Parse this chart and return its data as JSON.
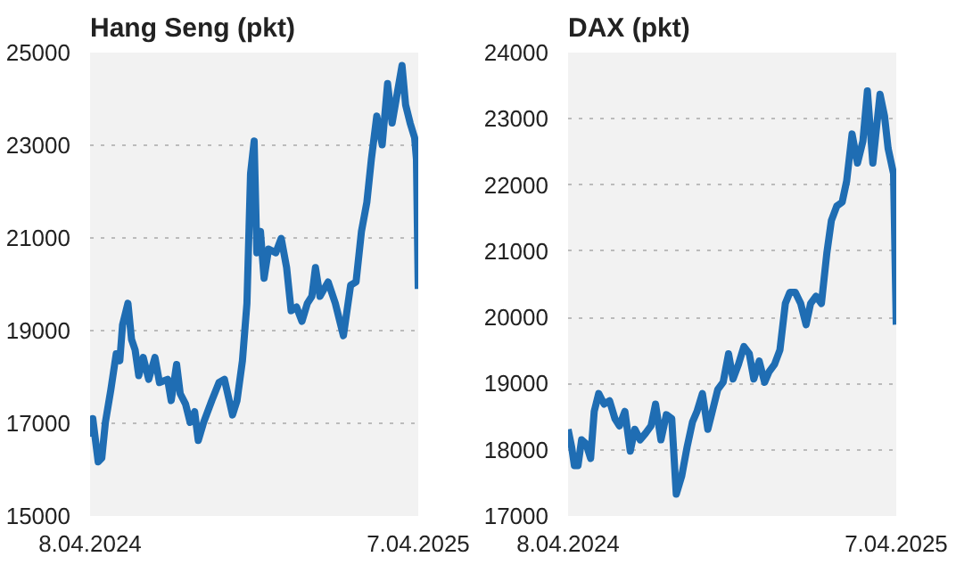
{
  "chart_data": [
    {
      "type": "line",
      "title": "Hang Seng (pkt)",
      "xlim": [
        "2024-04-08",
        "2025-04-07"
      ],
      "xticks": [
        {
          "value": "2024-04-08",
          "label": "8.04.2024"
        },
        {
          "value": "2025-04-07",
          "label": "7.04.2025"
        }
      ],
      "ylim": [
        15000,
        25000
      ],
      "yticks": [
        15000,
        17000,
        19000,
        21000,
        23000,
        25000
      ],
      "grid": "y",
      "line_style": "solid",
      "marker": "none",
      "series": [
        {
          "color": "#1f6db3",
          "x": [
            "2024-04-08",
            "2024-04-11",
            "2024-04-15",
            "2024-04-17",
            "2024-04-21",
            "2024-04-25",
            "2024-05-01",
            "2024-05-07",
            "2024-05-11",
            "2024-05-14",
            "2024-05-20",
            "2024-05-24",
            "2024-05-28",
            "2024-06-01",
            "2024-06-06",
            "2024-06-12",
            "2024-06-19",
            "2024-06-24",
            "2024-07-03",
            "2024-07-07",
            "2024-07-13",
            "2024-07-17",
            "2024-07-23",
            "2024-07-28",
            "2024-08-02",
            "2024-08-06",
            "2024-08-12",
            "2024-08-21",
            "2024-08-29",
            "2024-09-04",
            "2024-09-13",
            "2024-09-18",
            "2024-09-24",
            "2024-09-29",
            "2024-10-03",
            "2024-10-07",
            "2024-10-10",
            "2024-10-14",
            "2024-10-18",
            "2024-10-23",
            "2024-10-31",
            "2024-11-06",
            "2024-11-12",
            "2024-11-17",
            "2024-11-23",
            "2024-11-29",
            "2024-12-05",
            "2024-12-10",
            "2024-12-14",
            "2024-12-19",
            "2024-12-28",
            "2025-01-05",
            "2025-01-14",
            "2025-01-22",
            "2025-01-28",
            "2025-02-03",
            "2025-02-09",
            "2025-02-14",
            "2025-02-20",
            "2025-02-26",
            "2025-03-04",
            "2025-03-09",
            "2025-03-20",
            "2025-03-24",
            "2025-03-29",
            "2025-04-03",
            "2025-04-05",
            "2025-04-07"
          ],
          "values": [
            16710,
            17100,
            16480,
            16170,
            16250,
            17020,
            17720,
            18500,
            18350,
            19120,
            19590,
            18810,
            18580,
            18030,
            18420,
            17950,
            18420,
            17880,
            17950,
            17490,
            18270,
            17640,
            17410,
            17020,
            17250,
            16630,
            17020,
            17490,
            17880,
            17950,
            17180,
            17490,
            18350,
            19590,
            22390,
            23090,
            20680,
            21140,
            20130,
            20760,
            20680,
            20990,
            20360,
            19430,
            19510,
            19200,
            19590,
            19740,
            20360,
            19740,
            20050,
            19590,
            18890,
            19980,
            20050,
            21140,
            21770,
            22700,
            23630,
            23010,
            24330,
            23480,
            24720,
            23870,
            23480,
            23160,
            22700,
            19900
          ]
        }
      ]
    },
    {
      "type": "line",
      "title": "DAX (pkt)",
      "xlim": [
        "2024-04-08",
        "2025-04-07"
      ],
      "xticks": [
        {
          "value": "2024-04-08",
          "label": "8.04.2024"
        },
        {
          "value": "2025-04-07",
          "label": "7.04.2025"
        }
      ],
      "ylim": [
        17000,
        24000
      ],
      "yticks": [
        17000,
        18000,
        19000,
        20000,
        21000,
        22000,
        23000,
        24000
      ],
      "grid": "y",
      "line_style": "solid",
      "marker": "none",
      "series": [
        {
          "color": "#1f6db3",
          "x": [
            "2024-04-08",
            "2024-04-12",
            "2024-04-15",
            "2024-04-19",
            "2024-04-23",
            "2024-04-28",
            "2024-05-03",
            "2024-05-07",
            "2024-05-12",
            "2024-05-18",
            "2024-05-24",
            "2024-05-30",
            "2024-06-04",
            "2024-06-10",
            "2024-06-16",
            "2024-06-21",
            "2024-06-27",
            "2024-07-03",
            "2024-07-09",
            "2024-07-14",
            "2024-07-20",
            "2024-07-26",
            "2024-08-01",
            "2024-08-06",
            "2024-08-12",
            "2024-08-18",
            "2024-08-24",
            "2024-08-29",
            "2024-09-04",
            "2024-09-10",
            "2024-09-15",
            "2024-09-21",
            "2024-09-27",
            "2024-10-03",
            "2024-10-08",
            "2024-10-14",
            "2024-10-20",
            "2024-10-26",
            "2024-10-31",
            "2024-11-06",
            "2024-11-12",
            "2024-11-17",
            "2024-11-23",
            "2024-11-29",
            "2024-12-05",
            "2024-12-10",
            "2024-12-16",
            "2024-12-22",
            "2024-12-28",
            "2025-01-02",
            "2025-01-08",
            "2025-01-14",
            "2025-01-20",
            "2025-01-25",
            "2025-01-31",
            "2025-02-06",
            "2025-02-11",
            "2025-02-17",
            "2025-02-23",
            "2025-03-01",
            "2025-03-06",
            "2025-03-12",
            "2025-03-20",
            "2025-03-25",
            "2025-03-29",
            "2025-04-04",
            "2025-04-07"
          ],
          "values": [
            18310,
            18040,
            17760,
            17760,
            18150,
            18090,
            17870,
            18580,
            18850,
            18690,
            18740,
            18470,
            18360,
            18580,
            17980,
            18310,
            18150,
            18250,
            18360,
            18690,
            18150,
            18530,
            18470,
            17330,
            17600,
            18040,
            18420,
            18580,
            18850,
            18310,
            18580,
            18910,
            19020,
            19450,
            19070,
            19290,
            19560,
            19450,
            19070,
            19340,
            19020,
            19180,
            19290,
            19510,
            20210,
            20380,
            20380,
            20210,
            19890,
            20210,
            20320,
            20210,
            20970,
            21460,
            21680,
            21740,
            22060,
            22770,
            22330,
            22660,
            23420,
            22330,
            23370,
            23040,
            22550,
            22170,
            19890
          ]
        }
      ]
    }
  ]
}
